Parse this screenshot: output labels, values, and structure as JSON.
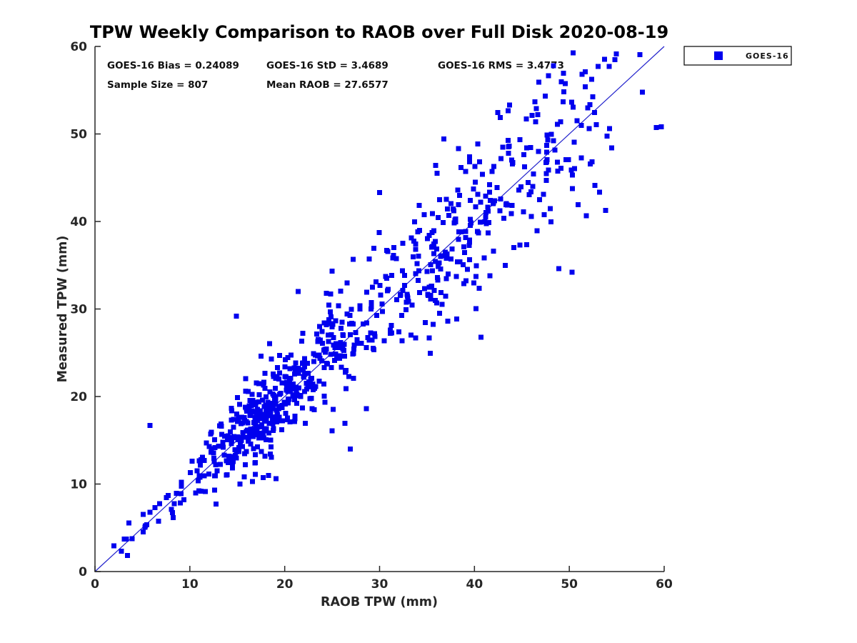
{
  "figure": {
    "background": "#ffffff"
  },
  "chart_data": {
    "type": "scatter",
    "title": "TPW Weekly Comparison to RAOB over Full Disk 2020-08-19",
    "xlabel": "RAOB TPW (mm)",
    "ylabel": "Measured TPW (mm)",
    "xlim": [
      0,
      60
    ],
    "ylim": [
      0,
      60
    ],
    "x_ticks": [
      0,
      10,
      20,
      30,
      40,
      50,
      60
    ],
    "y_ticks": [
      0,
      10,
      20,
      30,
      40,
      50,
      60
    ],
    "x_tick_labels": [
      "0",
      "10",
      "20",
      "30",
      "40",
      "50",
      "60"
    ],
    "y_tick_labels": [
      "0",
      "10",
      "20",
      "30",
      "40",
      "50",
      "60"
    ],
    "grid": false,
    "colors": {
      "marker": "#0000ee",
      "reference_line": "#2222cc",
      "axis": "#262626",
      "text": "#111111",
      "background": "#ffffff"
    },
    "annotations": {
      "bias": "GOES-16 Bias = 0.24089",
      "std": "GOES-16 StD = 3.4689",
      "rms": "GOES-16 RMS = 3.4773",
      "sample_size": "Sample Size = 807",
      "mean_raob": "Mean RAOB = 27.6577"
    },
    "stats": {
      "bias": 0.24089,
      "std": 3.4689,
      "rms": 3.4773,
      "sample_size": 807,
      "mean_raob": 27.6577
    },
    "legend": {
      "position": "top-right-outside",
      "entries": [
        {
          "label": "GOES-16",
          "marker": "square",
          "color": "#0000ee"
        }
      ]
    },
    "reference_line": {
      "meaning": "1:1 identity line",
      "from": [
        0,
        0
      ],
      "to": [
        60,
        60
      ]
    },
    "series": [
      {
        "name": "GOES-16",
        "marker": "square",
        "color": "#0000ee",
        "n_points": 807
      }
    ],
    "scatter_generator": {
      "comment": "807 unlabeled points estimated from pixels; cloud follows y = x + bias with heteroscedastic spread, regenerated deterministically from these fitted parameters",
      "seed": 20200819,
      "n_total": 807,
      "bias": 0.24089,
      "noise_sd_base": 0.7,
      "noise_sd_per_x": 0.1,
      "x_clip": [
        1.6,
        60.0
      ],
      "y_clip": [
        1.6,
        59.3
      ],
      "x_components": [
        {
          "dist": "normal",
          "mean": 17.5,
          "sd": 3.3,
          "weight": 0.4
        },
        {
          "dist": "normal",
          "mean": 25.5,
          "sd": 3.6,
          "weight": 0.18
        },
        {
          "dist": "normal",
          "mean": 38.0,
          "sd": 4.6,
          "weight": 0.22
        },
        {
          "dist": "normal",
          "mean": 47.5,
          "sd": 4.0,
          "weight": 0.15
        },
        {
          "dist": "uniform",
          "min": 2.0,
          "max": 13.0,
          "weight": 0.05
        }
      ]
    },
    "notable_points": [
      [
        14.9,
        29.2
      ],
      [
        5.8,
        16.7
      ],
      [
        19.1,
        10.6
      ],
      [
        30.0,
        43.3
      ],
      [
        25.0,
        16.1
      ],
      [
        26.9,
        14.0
      ],
      [
        59.7,
        50.8
      ],
      [
        51.7,
        57.1
      ],
      [
        46.8,
        55.9
      ],
      [
        35.9,
        46.4
      ],
      [
        21.4,
        32.0
      ],
      [
        48.9,
        34.6
      ]
    ]
  }
}
